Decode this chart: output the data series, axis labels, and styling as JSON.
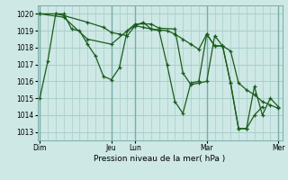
{
  "xlabel": "Pression niveau de la mer( hPa )",
  "bg_color": "#cde8e5",
  "grid_color": "#a8ceca",
  "line_color": "#1a5c1a",
  "ylim": [
    1012.5,
    1020.5
  ],
  "yticks": [
    1013,
    1014,
    1015,
    1016,
    1017,
    1018,
    1019,
    1020
  ],
  "xtick_labels": [
    "Dim",
    "",
    "",
    "Jeu",
    "Lun",
    "",
    "",
    "Mar",
    "",
    "",
    "Mer"
  ],
  "xtick_positions": [
    0,
    3,
    6,
    9,
    12,
    15,
    18,
    21,
    24,
    27,
    30
  ],
  "day_lines": [
    0,
    9,
    12,
    21,
    30
  ],
  "xlim": [
    -0.3,
    30.5
  ],
  "series1_x": [
    0,
    1,
    2,
    3,
    4,
    5,
    6,
    7,
    8,
    9,
    10,
    11,
    12,
    13,
    14,
    15,
    16,
    17,
    18,
    19,
    20,
    21,
    22,
    23,
    24,
    25,
    26,
    27,
    28
  ],
  "series1_y": [
    1015.0,
    1017.2,
    1020.0,
    1020.0,
    1019.1,
    1019.0,
    1018.2,
    1017.5,
    1016.3,
    1016.1,
    1016.8,
    1019.0,
    1019.3,
    1019.5,
    1019.1,
    1019.0,
    1017.0,
    1014.8,
    1014.1,
    1015.9,
    1016.0,
    1018.8,
    1018.1,
    1018.1,
    1015.9,
    1013.2,
    1013.2,
    1014.0,
    1014.5
  ],
  "series2_x": [
    0,
    2,
    3,
    6,
    8,
    9,
    10,
    11,
    12,
    13,
    14,
    15,
    16,
    17,
    18,
    19,
    20,
    21,
    22,
    23,
    24,
    25,
    26,
    27,
    28,
    29,
    30
  ],
  "series2_y": [
    1020.0,
    1020.0,
    1019.9,
    1019.5,
    1019.2,
    1018.9,
    1018.8,
    1018.7,
    1019.3,
    1019.2,
    1019.1,
    1019.05,
    1019.0,
    1018.8,
    1018.5,
    1018.2,
    1017.9,
    1018.8,
    1018.1,
    1018.1,
    1017.8,
    1015.9,
    1015.5,
    1015.2,
    1014.8,
    1014.6,
    1014.4
  ],
  "series3_x": [
    0,
    3,
    6,
    9,
    12,
    14,
    15,
    17,
    18,
    19,
    20,
    21,
    22,
    23,
    24,
    25,
    26,
    27,
    28,
    29,
    30
  ],
  "series3_y": [
    1020.0,
    1019.8,
    1018.5,
    1018.2,
    1019.4,
    1019.4,
    1019.15,
    1019.1,
    1016.5,
    1015.8,
    1015.9,
    1016.0,
    1018.7,
    1018.1,
    1015.9,
    1013.2,
    1013.2,
    1015.7,
    1014.0,
    1015.0,
    1014.5
  ]
}
